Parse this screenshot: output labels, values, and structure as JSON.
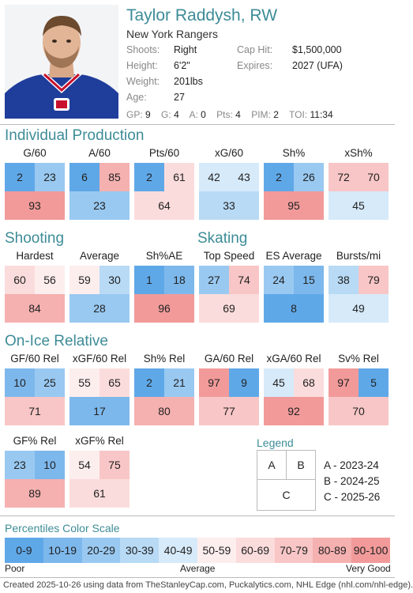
{
  "player": {
    "name": "Taylor Raddysh, RW",
    "team": "New York Rangers",
    "shoots_label": "Shoots:",
    "shoots": "Right",
    "height_label": "Height:",
    "height": "6'2\"",
    "weight_label": "Weight:",
    "weight": "201lbs",
    "age_label": "Age:",
    "age": "27",
    "cap_label": "Cap Hit:",
    "cap": "$1,500,000",
    "expires_label": "Expires:",
    "expires": "2027 (UFA)",
    "gp_label": "GP:",
    "gp": "9",
    "g_label": "G:",
    "g": "4",
    "a_label": "A:",
    "a": "0",
    "pts_label": "Pts:",
    "pts": "4",
    "pim_label": "PIM:",
    "pim": "2",
    "toi_label": "TOI:",
    "toi": "11:34"
  },
  "sections": {
    "individual": "Individual Production",
    "shooting": "Shooting",
    "skating": "Skating",
    "onice": "On-Ice Relative"
  },
  "metrics": [
    {
      "label": "G/60",
      "a": 2,
      "b": 23,
      "c": 93
    },
    {
      "label": "A/60",
      "a": 6,
      "b": 85,
      "c": 23
    },
    {
      "label": "Pts/60",
      "a": 2,
      "b": 61,
      "c": 64
    },
    {
      "label": "xG/60",
      "a": 42,
      "b": 43,
      "c": 33
    },
    {
      "label": "Sh%",
      "a": 2,
      "b": 26,
      "c": 95
    },
    {
      "label": "xSh%",
      "a": 72,
      "b": 70,
      "c": 45
    },
    {
      "label": "Hardest",
      "a": 60,
      "b": 56,
      "c": 84
    },
    {
      "label": "Average",
      "a": 59,
      "b": 30,
      "c": 28
    },
    {
      "label": "Sh%AE",
      "a": 1,
      "b": 18,
      "c": 96
    },
    {
      "label": "Top Speed",
      "a": 27,
      "b": 74,
      "c": 69
    },
    {
      "label": "ES Average",
      "a": 24,
      "b": 15,
      "c": 8
    },
    {
      "label": "Bursts/mi",
      "a": 38,
      "b": 79,
      "c": 49
    },
    {
      "label": "GF/60 Rel",
      "a": 10,
      "b": 25,
      "c": 71
    },
    {
      "label": "xGF/60 Rel",
      "a": 55,
      "b": 65,
      "c": 17
    },
    {
      "label": "Sh% Rel",
      "a": 2,
      "b": 21,
      "c": 80
    },
    {
      "label": "GA/60 Rel",
      "a": 97,
      "b": 9,
      "c": 77
    },
    {
      "label": "xGA/60 Rel",
      "a": 45,
      "b": 68,
      "c": 92
    },
    {
      "label": "Sv% Rel",
      "a": 97,
      "b": 5,
      "c": 70
    },
    {
      "label": "GF% Rel",
      "a": 23,
      "b": 10,
      "c": 89
    },
    {
      "label": "xGF% Rel",
      "a": 54,
      "b": 75,
      "c": 61
    }
  ],
  "legend": {
    "title": "Legend",
    "a": "A",
    "b": "B",
    "c": "C",
    "a_text": "A - 2023-24",
    "b_text": "B - 2024-25",
    "c_text": "C - 2025-26"
  },
  "scale": {
    "title": "Percentiles Color Scale",
    "buckets": [
      {
        "label": "0-9",
        "color": "#5fa8e8"
      },
      {
        "label": "10-19",
        "color": "#7db8ec"
      },
      {
        "label": "20-29",
        "color": "#99c9f1"
      },
      {
        "label": "30-39",
        "color": "#b8daf5"
      },
      {
        "label": "40-49",
        "color": "#d6eafa"
      },
      {
        "label": "50-59",
        "color": "#fdeeee"
      },
      {
        "label": "60-69",
        "color": "#fbdcdc"
      },
      {
        "label": "70-79",
        "color": "#f8c6c6"
      },
      {
        "label": "80-89",
        "color": "#f5b0b0"
      },
      {
        "label": "90-100",
        "color": "#f29a9a"
      }
    ],
    "poor": "Poor",
    "average": "Average",
    "very_good": "Very Good"
  },
  "footer": "Created 2025-10-26 using data from TheStanleyCap.com, Puckalytics.com, NHL Edge (nhl.com/nhl-edge)."
}
